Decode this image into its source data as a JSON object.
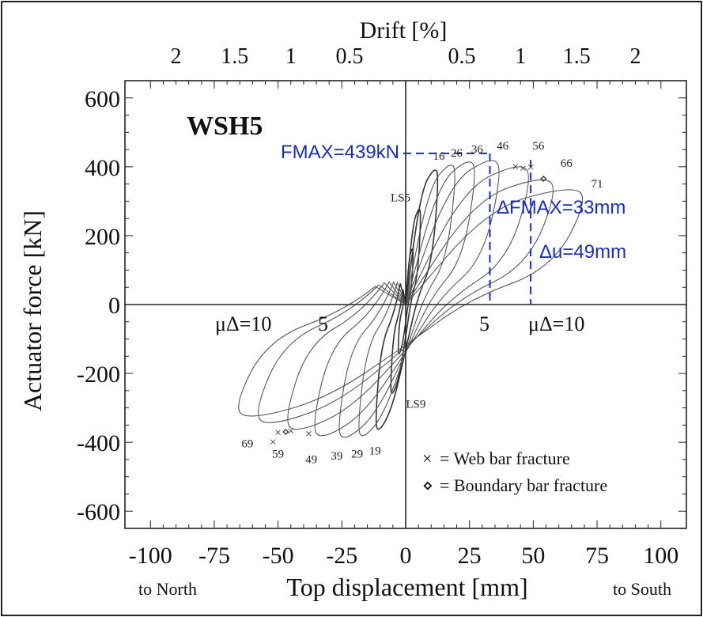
{
  "chart_data": {
    "type": "line",
    "title": "WSH5",
    "xlabel": "Top displacement [mm]",
    "ylabel": "Actuator force [kN]",
    "top_axis_label": "Drift [%]",
    "xlim": [
      -110,
      110
    ],
    "ylim": [
      -650,
      650
    ],
    "x_ticks": [
      -100,
      -75,
      -50,
      -25,
      0,
      25,
      50,
      75,
      100
    ],
    "x_tick_labels": [
      "-100",
      "-75",
      "-50",
      "-25",
      "0",
      "25",
      "50",
      "75",
      "100"
    ],
    "y_ticks": [
      -600,
      -400,
      -200,
      0,
      200,
      400,
      600
    ],
    "y_tick_labels": [
      "-600",
      "-400",
      "-200",
      "0",
      "200",
      "400",
      "600"
    ],
    "drift_ticks_left": [
      {
        "label": "2",
        "x": -90
      },
      {
        "label": "1.5",
        "x": -67
      },
      {
        "label": "1",
        "x": -45
      },
      {
        "label": "0.5",
        "x": -22
      }
    ],
    "drift_ticks_right": [
      {
        "label": "0.5",
        "x": 22
      },
      {
        "label": "1",
        "x": 45
      },
      {
        "label": "1.5",
        "x": 67
      },
      {
        "label": "2",
        "x": 90
      }
    ],
    "direction_labels": {
      "left": "to North",
      "right": "to South"
    },
    "ductility_labels": {
      "neg_10": "μΔ=10",
      "neg_5": "5",
      "pos_5": "5",
      "pos_10": "μΔ=10"
    },
    "annotations": {
      "fmax": "FMAX=439kN",
      "dfmax": "ΔFMAX=33mm",
      "du": "Δu=49mm"
    },
    "annotation_values": {
      "fmax_kN": 439,
      "dfmax_mm": 33,
      "du_mm": 49
    },
    "cycle_labels": [
      {
        "text": "16",
        "x": 13,
        "y": 420
      },
      {
        "text": "26",
        "x": 20,
        "y": 430
      },
      {
        "text": "36",
        "x": 28,
        "y": 440
      },
      {
        "text": "46",
        "x": 38,
        "y": 450
      },
      {
        "text": "56",
        "x": 52,
        "y": 450
      },
      {
        "text": "66",
        "x": 63,
        "y": 400
      },
      {
        "text": "71",
        "x": 75,
        "y": 340
      },
      {
        "text": "LS5",
        "x": -2,
        "y": 300
      },
      {
        "text": "LS9",
        "x": 4,
        "y": -300
      },
      {
        "text": "19",
        "x": -12,
        "y": -435
      },
      {
        "text": "29",
        "x": -19,
        "y": -445
      },
      {
        "text": "39",
        "x": -27,
        "y": -450
      },
      {
        "text": "49",
        "x": -37,
        "y": -460
      },
      {
        "text": "59",
        "x": -50,
        "y": -445
      },
      {
        "text": "69",
        "x": -62,
        "y": -415
      }
    ],
    "legend": {
      "position": "bottom-right",
      "entries": [
        {
          "marker": "×",
          "label": "= Web bar fracture"
        },
        {
          "marker": "⋄",
          "label": "= Boundary bar fracture"
        }
      ]
    },
    "loops": [
      {
        "min_x": -3,
        "min_y": -150,
        "max_x": 3,
        "max_y": 170
      },
      {
        "min_x": -6,
        "min_y": -270,
        "max_x": 6,
        "max_y": 290
      },
      {
        "min_x": -12,
        "min_y": -380,
        "max_x": 13,
        "max_y": 410
      },
      {
        "min_x": -19,
        "min_y": -400,
        "max_x": 20,
        "max_y": 425
      },
      {
        "min_x": -27,
        "min_y": -405,
        "max_x": 28,
        "max_y": 435
      },
      {
        "min_x": -37,
        "min_y": -400,
        "max_x": 38,
        "max_y": 439
      },
      {
        "min_x": -48,
        "min_y": -380,
        "max_x": 50,
        "max_y": 420
      },
      {
        "min_x": -60,
        "min_y": -360,
        "max_x": 60,
        "max_y": 380
      },
      {
        "min_x": -68,
        "min_y": -340,
        "max_x": 72,
        "max_y": 350
      }
    ],
    "web_fracture_markers": [
      {
        "x": 43,
        "y": 400
      },
      {
        "x": 46,
        "y": 395
      },
      {
        "x": 49,
        "y": 398
      },
      {
        "x": -38,
        "y": -375
      },
      {
        "x": -45,
        "y": -368
      },
      {
        "x": -50,
        "y": -372
      },
      {
        "x": -52,
        "y": -400
      }
    ],
    "boundary_fracture_markers": [
      {
        "x": 54,
        "y": 365
      },
      {
        "x": -47,
        "y": -370
      }
    ],
    "grid": false
  }
}
